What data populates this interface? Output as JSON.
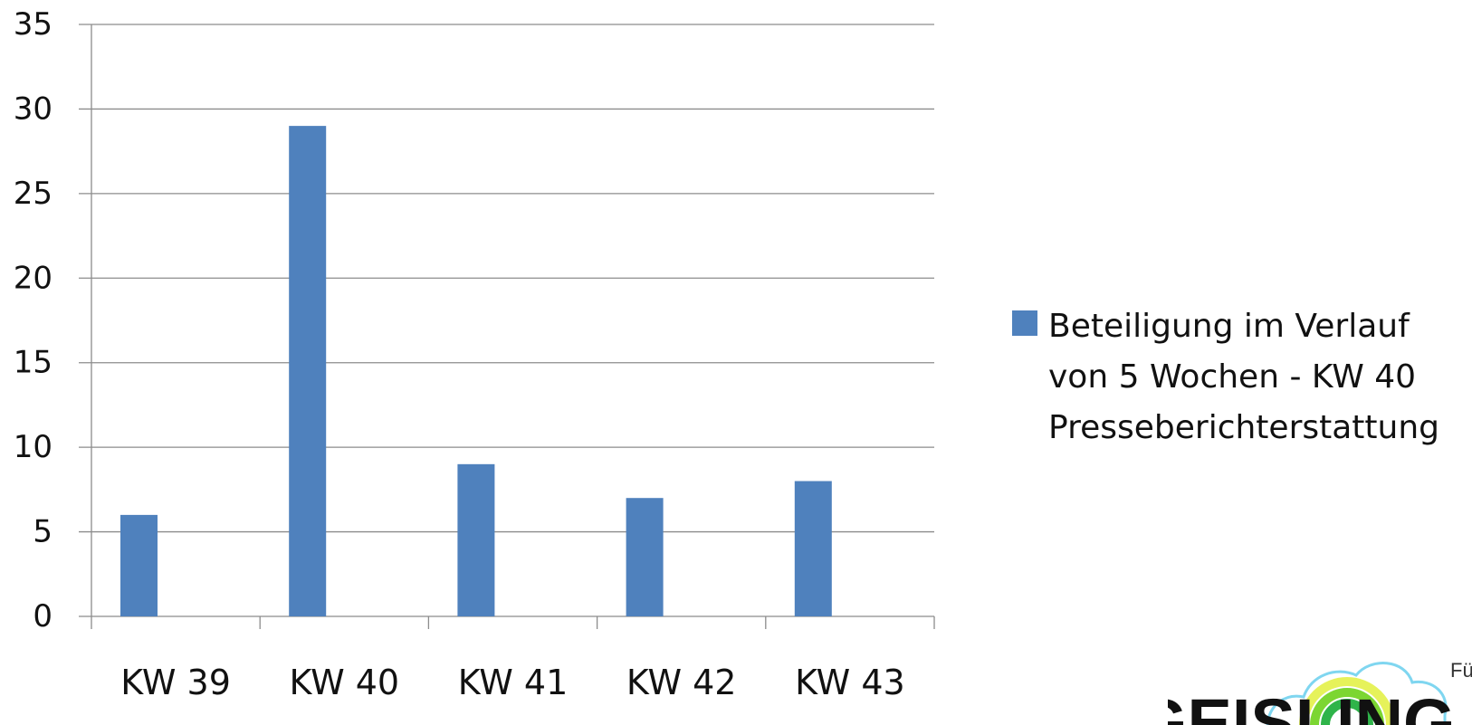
{
  "chart_data": {
    "type": "bar",
    "categories": [
      "KW 39",
      "KW 40",
      "KW 41",
      "KW 42",
      "KW 43"
    ],
    "series": [
      {
        "name": "Beteiligung im Verlauf\nvon 5 Wochen - KW 40\nPresseberichterstattung",
        "values": [
          6,
          29,
          9,
          7,
          8
        ]
      }
    ],
    "yticks": [
      0,
      5,
      10,
      15,
      20,
      25,
      30,
      35
    ],
    "ylim": [
      0,
      35
    ],
    "grid": true,
    "legend_position": "right",
    "colors": {
      "bar": "#4F81BD",
      "grid": "#8C8C8C",
      "axis": "#8C8C8C"
    }
  },
  "logo": {
    "text": "GEISLING",
    "tagline": "Für"
  }
}
